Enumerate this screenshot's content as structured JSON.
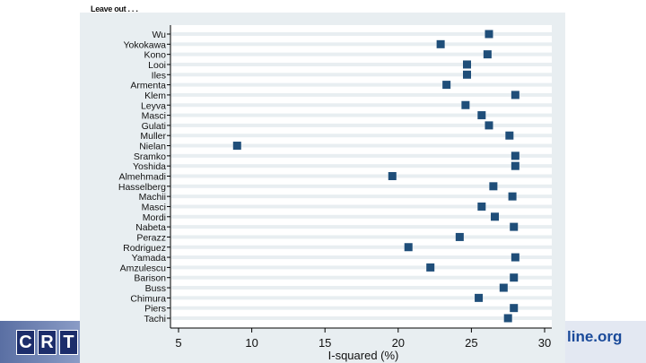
{
  "heading": "Leave out . . .",
  "logos": {
    "left": "CRT",
    "right": "line.org"
  },
  "chart_data": {
    "type": "scatter",
    "xlabel": "I-squared (%)",
    "xlim": [
      5,
      30
    ],
    "xticks": [
      5,
      10,
      15,
      20,
      25,
      30
    ],
    "grid": "horizontal",
    "marker_color": "#1f4e79",
    "categories": [
      "Wu",
      "Yokokawa",
      "Kono",
      "Looi",
      "Iles",
      "Armenta",
      "Klem",
      "Leyva",
      "Masci",
      "Gulati",
      "Muller",
      "Nielan",
      "Sramko",
      "Yoshida",
      "Almehmadi",
      "Hasselberg",
      "Machii",
      "Masci",
      "Mordi",
      "Nabeta",
      "Perazz",
      "Rodriguez",
      "Yamada",
      "Amzulescu",
      "Barison",
      "Buss",
      "Chimura",
      "Piers",
      "Tachi"
    ],
    "values": [
      26.2,
      22.9,
      26.1,
      24.7,
      24.7,
      23.3,
      28.0,
      24.6,
      25.7,
      26.2,
      27.6,
      9.0,
      28.0,
      28.0,
      19.6,
      26.5,
      27.8,
      25.7,
      26.6,
      27.9,
      24.2,
      20.7,
      28.0,
      22.2,
      27.9,
      27.2,
      25.5,
      27.9,
      27.5
    ]
  }
}
